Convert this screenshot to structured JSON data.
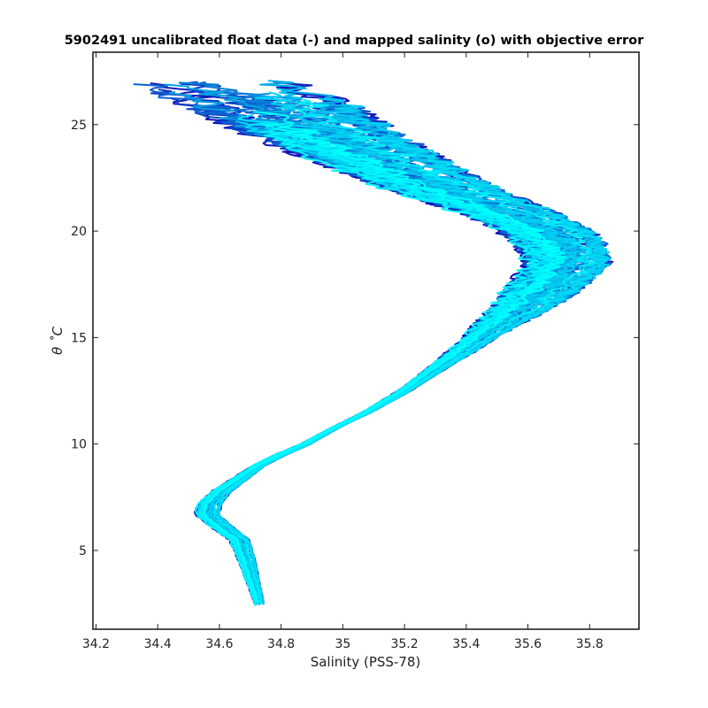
{
  "chart_data": {
    "type": "line",
    "title": "5902491 uncalibrated float data (-) and mapped salinity (o) with objective error",
    "xlabel": "Salinity (PSS-78)",
    "ylabel": "θ ˚C",
    "xlim": [
      34.19,
      35.96
    ],
    "ylim": [
      1.3,
      28.4
    ],
    "x_ticks": [
      34.2,
      34.4,
      34.6,
      34.8,
      35,
      35.2,
      35.4,
      35.6,
      35.8
    ],
    "x_tick_labels": [
      "34.2",
      "34.4",
      "34.6",
      "34.8",
      "35",
      "35.2",
      "35.4",
      "35.6",
      "35.8"
    ],
    "y_ticks": [
      5,
      10,
      15,
      20,
      25
    ],
    "y_tick_labels": [
      "5",
      "10",
      "15",
      "20",
      "25"
    ],
    "grid": false,
    "colors": {
      "color_start": "#1010b8",
      "color_end": "#00ffff"
    },
    "mean_profile": {
      "temperature": [
        2.5,
        3.5,
        4.5,
        5.5,
        6.2,
        6.7,
        7.2,
        7.8,
        8.5,
        9.0,
        9.5,
        10.0,
        10.8,
        11.5,
        12.5,
        13.5,
        14.5,
        15.5,
        16.5,
        17.5,
        18.5,
        19.0,
        19.5,
        20.0,
        20.5,
        21.0,
        21.5,
        22.0,
        23.0,
        24.0,
        25.0,
        26.0,
        27.0
      ],
      "salinity": [
        34.73,
        34.71,
        34.69,
        34.665,
        34.6,
        34.56,
        34.57,
        34.61,
        34.68,
        34.73,
        34.8,
        34.88,
        34.98,
        35.08,
        35.2,
        35.3,
        35.4,
        35.49,
        35.59,
        35.67,
        35.73,
        35.72,
        35.7,
        35.66,
        35.59,
        35.51,
        35.41,
        35.32,
        35.17,
        35.02,
        34.88,
        34.75,
        34.55
      ]
    },
    "profile_count": 60,
    "series_spread": {
      "temperature": [
        2.5,
        5.0,
        7.0,
        9.0,
        11.0,
        13.0,
        15.0,
        17.0,
        19.0,
        21.0,
        23.0,
        25.0,
        27.0
      ],
      "salinity_halfwidth": [
        0.015,
        0.03,
        0.04,
        0.02,
        0.012,
        0.025,
        0.05,
        0.11,
        0.13,
        0.15,
        0.19,
        0.24,
        0.28
      ]
    }
  }
}
